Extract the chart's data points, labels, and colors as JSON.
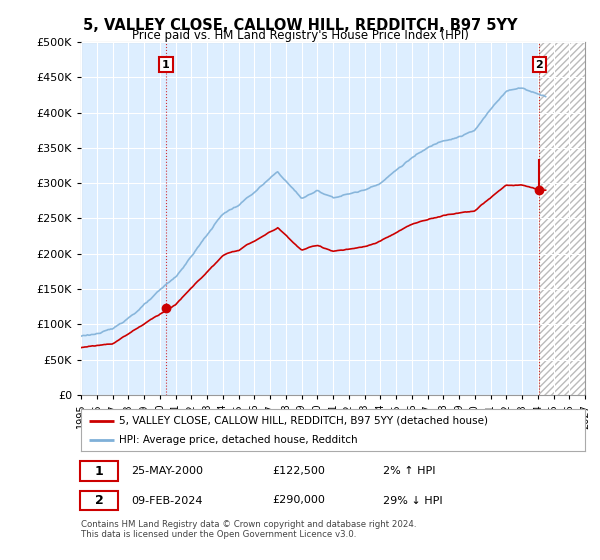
{
  "title": "5, VALLEY CLOSE, CALLOW HILL, REDDITCH, B97 5YY",
  "subtitle": "Price paid vs. HM Land Registry's House Price Index (HPI)",
  "legend_line1": "5, VALLEY CLOSE, CALLOW HILL, REDDITCH, B97 5YY (detached house)",
  "legend_line2": "HPI: Average price, detached house, Redditch",
  "annotation1_date": "25-MAY-2000",
  "annotation1_price": "£122,500",
  "annotation1_hpi": "2% ↑ HPI",
  "annotation2_date": "09-FEB-2024",
  "annotation2_price": "£290,000",
  "annotation2_hpi": "29% ↓ HPI",
  "footer": "Contains HM Land Registry data © Crown copyright and database right 2024.\nThis data is licensed under the Open Government Licence v3.0.",
  "sale1_year": 2000.4,
  "sale1_value": 122500,
  "sale2_year": 2024.1,
  "sale2_value": 290000,
  "hpi_color": "#7fb0d8",
  "price_color": "#cc0000",
  "plot_bg_color": "#ddeeff",
  "hatch_bg_color": "#e8e8e8",
  "ylim": [
    0,
    500000
  ],
  "xlim_start": 1995.0,
  "xlim_end": 2027.0
}
